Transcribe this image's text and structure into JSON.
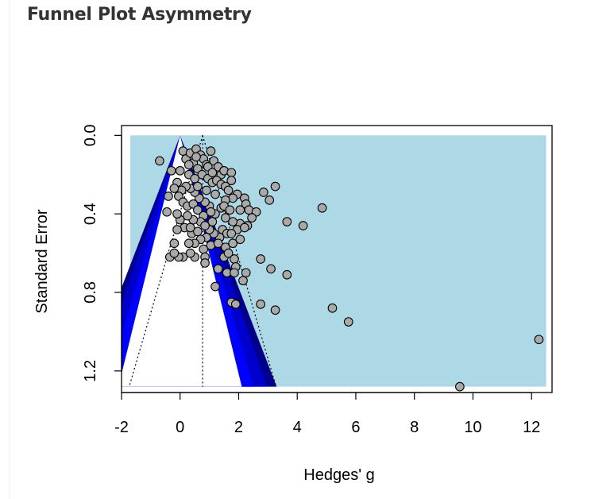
{
  "header": {
    "title": "Funnel Plot Asymmetry"
  },
  "chart_data": {
    "type": "scatter",
    "title": "",
    "xlabel": "Hedges' g",
    "ylabel": "Standard Error",
    "xlim": [
      -2,
      12.7
    ],
    "ylim": [
      1.31,
      -0.05
    ],
    "y_reversed": true,
    "x_ticks": [
      -2,
      0,
      2,
      4,
      6,
      8,
      10,
      12
    ],
    "y_ticks": [
      0.0,
      0.4,
      0.8,
      1.2
    ],
    "x_tick_labels": [
      "-2",
      "0",
      "2",
      "4",
      "6",
      "8",
      "10",
      "12"
    ],
    "y_tick_labels": [
      "0.0",
      "0.4",
      "0.8",
      "1.2"
    ],
    "grid": false,
    "colors": {
      "background_region": "#add8e6",
      "contour_inner": "#0000ff",
      "contour_mid": "#0000cd",
      "contour_outer": "#00008b",
      "points": "#a9a9a9"
    },
    "reference": {
      "fixed_effect_estimate": 0.77,
      "zero_line": 0,
      "max_se": 1.28,
      "background_x_range": [
        -1.7,
        12.5
      ]
    },
    "points": [
      {
        "x": -0.7,
        "y": 0.13
      },
      {
        "x": -0.3,
        "y": 0.18
      },
      {
        "x": -0.1,
        "y": 0.24
      },
      {
        "x": 0.1,
        "y": 0.08
      },
      {
        "x": 0.2,
        "y": 0.12
      },
      {
        "x": 0.35,
        "y": 0.09
      },
      {
        "x": 0.45,
        "y": 0.14
      },
      {
        "x": 0.55,
        "y": 0.07
      },
      {
        "x": 0.7,
        "y": 0.1
      },
      {
        "x": 0.8,
        "y": 0.12
      },
      {
        "x": 1.05,
        "y": 0.08
      },
      {
        "x": 1.15,
        "y": 0.13
      },
      {
        "x": 0.6,
        "y": 0.17
      },
      {
        "x": 0.9,
        "y": 0.15
      },
      {
        "x": 1.3,
        "y": 0.16
      },
      {
        "x": 1.4,
        "y": 0.2
      },
      {
        "x": 1.5,
        "y": 0.18
      },
      {
        "x": 1.75,
        "y": 0.19
      },
      {
        "x": 0.0,
        "y": 0.18
      },
      {
        "x": 0.3,
        "y": 0.2
      },
      {
        "x": 0.5,
        "y": 0.22
      },
      {
        "x": 0.75,
        "y": 0.2
      },
      {
        "x": 0.95,
        "y": 0.22
      },
      {
        "x": 1.1,
        "y": 0.24
      },
      {
        "x": 1.25,
        "y": 0.23
      },
      {
        "x": 1.4,
        "y": 0.25
      },
      {
        "x": 1.55,
        "y": 0.26
      },
      {
        "x": 1.75,
        "y": 0.23
      },
      {
        "x": 1.95,
        "y": 0.3
      },
      {
        "x": 2.2,
        "y": 0.32
      },
      {
        "x": 1.8,
        "y": 0.32
      },
      {
        "x": 1.65,
        "y": 0.28
      },
      {
        "x": 1.55,
        "y": 0.33
      },
      {
        "x": 1.4,
        "y": 0.37
      },
      {
        "x": 1.5,
        "y": 0.36
      },
      {
        "x": 1.7,
        "y": 0.38
      },
      {
        "x": 2.05,
        "y": 0.38
      },
      {
        "x": 2.25,
        "y": 0.35
      },
      {
        "x": 2.35,
        "y": 0.38
      },
      {
        "x": 2.6,
        "y": 0.39
      },
      {
        "x": 2.45,
        "y": 0.42
      },
      {
        "x": 2.05,
        "y": 0.45
      },
      {
        "x": 2.3,
        "y": 0.46
      },
      {
        "x": 1.8,
        "y": 0.44
      },
      {
        "x": 1.55,
        "y": 0.42
      },
      {
        "x": 1.45,
        "y": 0.48
      },
      {
        "x": 1.6,
        "y": 0.5
      },
      {
        "x": 1.35,
        "y": 0.52
      },
      {
        "x": 1.15,
        "y": 0.5
      },
      {
        "x": 1.0,
        "y": 0.48
      },
      {
        "x": 0.9,
        "y": 0.52
      },
      {
        "x": 1.1,
        "y": 0.44
      },
      {
        "x": 1.2,
        "y": 0.4
      },
      {
        "x": 1.0,
        "y": 0.36
      },
      {
        "x": 0.85,
        "y": 0.34
      },
      {
        "x": 0.65,
        "y": 0.32
      },
      {
        "x": 0.5,
        "y": 0.29
      },
      {
        "x": 0.35,
        "y": 0.27
      },
      {
        "x": 0.2,
        "y": 0.26
      },
      {
        "x": 0.05,
        "y": 0.28
      },
      {
        "x": -0.05,
        "y": 0.31
      },
      {
        "x": -0.2,
        "y": 0.27
      },
      {
        "x": -0.4,
        "y": 0.31
      },
      {
        "x": 0.1,
        "y": 0.34
      },
      {
        "x": 0.25,
        "y": 0.36
      },
      {
        "x": 0.45,
        "y": 0.35
      },
      {
        "x": 0.6,
        "y": 0.38
      },
      {
        "x": 0.8,
        "y": 0.41
      },
      {
        "x": 0.7,
        "y": 0.44
      },
      {
        "x": 0.45,
        "y": 0.43
      },
      {
        "x": 0.25,
        "y": 0.41
      },
      {
        "x": 0.0,
        "y": 0.43
      },
      {
        "x": -0.1,
        "y": 0.4
      },
      {
        "x": -0.45,
        "y": 0.39
      },
      {
        "x": 0.15,
        "y": 0.47
      },
      {
        "x": 0.4,
        "y": 0.5
      },
      {
        "x": 0.6,
        "y": 0.49
      },
      {
        "x": 0.85,
        "y": 0.46
      },
      {
        "x": 0.7,
        "y": 0.53
      },
      {
        "x": 0.5,
        "y": 0.55
      },
      {
        "x": 0.3,
        "y": 0.55
      },
      {
        "x": -0.2,
        "y": 0.55
      },
      {
        "x": -0.1,
        "y": 0.48
      },
      {
        "x": 0.8,
        "y": 0.58
      },
      {
        "x": 1.05,
        "y": 0.56
      },
      {
        "x": 1.3,
        "y": 0.55
      },
      {
        "x": 1.55,
        "y": 0.57
      },
      {
        "x": 1.8,
        "y": 0.55
      },
      {
        "x": 2.05,
        "y": 0.53
      },
      {
        "x": 1.95,
        "y": 0.48
      },
      {
        "x": 2.2,
        "y": 0.47
      },
      {
        "x": 1.75,
        "y": 0.5
      },
      {
        "x": 1.5,
        "y": 0.62
      },
      {
        "x": 1.65,
        "y": 0.6
      },
      {
        "x": 1.85,
        "y": 0.63
      },
      {
        "x": 0.85,
        "y": 0.62
      },
      {
        "x": 0.85,
        "y": 0.65
      },
      {
        "x": 0.5,
        "y": 0.62
      },
      {
        "x": 0.35,
        "y": 0.6
      },
      {
        "x": 0.1,
        "y": 0.62
      },
      {
        "x": -0.05,
        "y": 0.62
      },
      {
        "x": -0.35,
        "y": 0.62
      },
      {
        "x": -0.2,
        "y": 0.6
      },
      {
        "x": 1.3,
        "y": 0.68
      },
      {
        "x": 1.6,
        "y": 0.7
      },
      {
        "x": 1.9,
        "y": 0.67
      },
      {
        "x": 2.25,
        "y": 0.7
      },
      {
        "x": 2.15,
        "y": 0.74
      },
      {
        "x": 1.85,
        "y": 0.7
      },
      {
        "x": 1.2,
        "y": 0.77
      },
      {
        "x": 1.75,
        "y": 0.85
      },
      {
        "x": 1.9,
        "y": 0.86
      },
      {
        "x": 0.3,
        "y": 0.15
      },
      {
        "x": 0.6,
        "y": 0.26
      },
      {
        "x": 0.9,
        "y": 0.28
      },
      {
        "x": 1.2,
        "y": 0.3
      },
      {
        "x": 0.35,
        "y": 0.47
      },
      {
        "x": 1.05,
        "y": 0.39
      },
      {
        "x": 0.95,
        "y": 0.16
      },
      {
        "x": 0.55,
        "y": 0.11
      },
      {
        "x": 1.1,
        "y": 0.19
      },
      {
        "x": 2.85,
        "y": 0.29
      },
      {
        "x": 3.25,
        "y": 0.26
      },
      {
        "x": 3.05,
        "y": 0.33
      },
      {
        "x": 3.65,
        "y": 0.44
      },
      {
        "x": 4.2,
        "y": 0.46
      },
      {
        "x": 4.85,
        "y": 0.37
      },
      {
        "x": 2.75,
        "y": 0.63
      },
      {
        "x": 3.1,
        "y": 0.68
      },
      {
        "x": 3.65,
        "y": 0.71
      },
      {
        "x": 2.75,
        "y": 0.86
      },
      {
        "x": 3.25,
        "y": 0.89
      },
      {
        "x": 5.2,
        "y": 0.88
      },
      {
        "x": 5.75,
        "y": 0.95
      },
      {
        "x": 12.25,
        "y": 1.04
      },
      {
        "x": 9.55,
        "y": 1.28
      }
    ]
  }
}
